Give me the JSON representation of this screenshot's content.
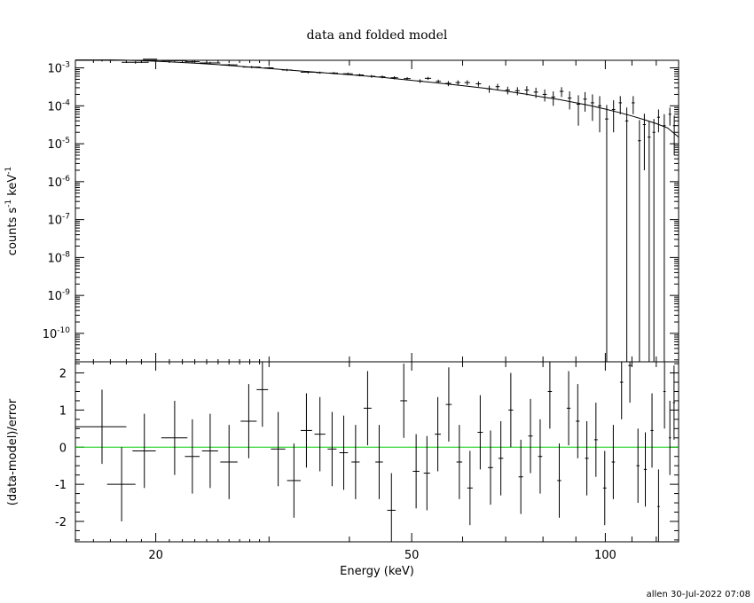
{
  "chart_data": [
    {
      "type": "scatter",
      "title": "data and folded model",
      "ylabel_base": "counts s",
      "ylabel_mid": " keV",
      "ylabel_sup": "-1",
      "xscale": "log",
      "yscale": "log",
      "xlim": [
        15,
        130
      ],
      "ylim_log10": [
        -10.75,
        -2.8
      ],
      "y_ticks": [
        {
          "exp": -3,
          "base": "10",
          "sup": "-3"
        },
        {
          "exp": -4,
          "base": "10",
          "sup": "-4"
        },
        {
          "exp": -5,
          "base": "10",
          "sup": "-5"
        },
        {
          "exp": -6,
          "base": "10",
          "sup": "-6"
        },
        {
          "exp": -7,
          "base": "10",
          "sup": "-7"
        },
        {
          "exp": -8,
          "base": "10",
          "sup": "-8"
        },
        {
          "exp": -9,
          "base": "10",
          "sup": "-9"
        },
        {
          "exp": -10,
          "base": "10",
          "sup": "-10"
        }
      ],
      "series": [
        {
          "kind": "data",
          "points": [
            [
              16.5,
              0.0016,
              1.5,
              0.00013
            ],
            [
              18.6,
              0.0014,
              0.9,
              0.00011
            ],
            [
              19.6,
              0.0017,
              0.5,
              0.00012
            ],
            [
              21.4,
              0.00155,
              1.0,
              0.0001
            ],
            [
              22.8,
              0.00145,
              0.6,
              9e-05
            ],
            [
              24.3,
              0.00135,
              0.9,
              9e-05
            ],
            [
              26.0,
              0.0012,
              0.8,
              8e-05
            ],
            [
              28.2,
              0.00105,
              0.9,
              7e-05
            ],
            [
              30.0,
              0.001,
              0.5,
              6e-05
            ],
            [
              32.0,
              0.00088,
              0.6,
              6e-05
            ],
            [
              34.5,
              0.00077,
              0.9,
              6e-05
            ],
            [
              36.0,
              0.00075,
              0.5,
              5e-05
            ],
            [
              37.8,
              0.00073,
              0.6,
              5e-05
            ],
            [
              39.8,
              0.0007,
              0.7,
              5e-05
            ],
            [
              41.5,
              0.00065,
              0.6,
              5e-05
            ],
            [
              43.3,
              0.0006,
              0.6,
              5e-05
            ],
            [
              45.0,
              0.00058,
              0.5,
              5e-05
            ],
            [
              47.0,
              0.00055,
              0.6,
              5e-05
            ],
            [
              49.2,
              0.00052,
              0.6,
              5e-05
            ],
            [
              51.5,
              0.00045,
              0.5,
              5e-05
            ],
            [
              53.0,
              0.00053,
              0.6,
              5e-05
            ],
            [
              55.0,
              0.00044,
              0.5,
              5e-05
            ],
            [
              57.0,
              0.00039,
              0.6,
              6e-05
            ],
            [
              59.0,
              0.00041,
              0.5,
              6e-05
            ],
            [
              61.0,
              0.00041,
              0.6,
              6e-05
            ],
            [
              63.5,
              0.00038,
              0.6,
              6e-05
            ],
            [
              66.0,
              0.00028,
              0.6,
              6e-05
            ],
            [
              68.0,
              0.00032,
              0.5,
              6e-05
            ],
            [
              70.5,
              0.00026,
              0.6,
              6e-05
            ],
            [
              73.0,
              0.00025,
              0.6,
              6e-05
            ],
            [
              75.5,
              0.00026,
              0.6,
              7e-05
            ],
            [
              78.0,
              0.00023,
              0.6,
              7e-05
            ],
            [
              80.5,
              0.0002,
              0.6,
              7e-05
            ],
            [
              83.0,
              0.00017,
              0.6,
              7e-05
            ],
            [
              85.5,
              0.00024,
              0.6,
              7e-05
            ],
            [
              88.0,
              0.00016,
              0.6,
              8e-05
            ],
            [
              90.8,
              0.00011,
              0.6,
              8e-05
            ],
            [
              93.0,
              0.00015,
              0.6,
              8e-05
            ],
            [
              95.5,
              0.00012,
              0.6,
              8e-05
            ],
            [
              98.0,
              0.0001,
              0.6,
              8e-05
            ],
            [
              100.5,
              4.5e-05,
              0.6,
              6e-05
            ],
            [
              103.0,
              8e-05,
              0.6,
              6e-05
            ],
            [
              105.5,
              0.00012,
              0.6,
              6e-05
            ],
            [
              108.0,
              4e-05,
              0.6,
              5e-05
            ],
            [
              110.5,
              0.00012,
              0.6,
              6e-05
            ],
            [
              113.0,
              1.2e-05,
              0.6,
              3e-05
            ],
            [
              115.0,
              3.2e-05,
              0.6,
              3e-05
            ],
            [
              117.0,
              1.5e-05,
              0.6,
              2.5e-05
            ],
            [
              119.0,
              2e-05,
              0.6,
              2.5e-05
            ],
            [
              121.0,
              5e-05,
              0.6,
              3e-05
            ],
            [
              123.5,
              3e-05,
              0.6,
              3e-05
            ],
            [
              126.0,
              6e-05,
              0.6,
              3e-05
            ],
            [
              128.0,
              3e-05,
              0.6,
              2.5e-05
            ]
          ]
        },
        {
          "kind": "folded_model",
          "points": [
            [
              15.0,
              0.00162
            ],
            [
              17.0,
              0.00162
            ],
            [
              19.0,
              0.00155
            ],
            [
              21.0,
              0.00145
            ],
            [
              23.0,
              0.00133
            ],
            [
              25.0,
              0.00122
            ],
            [
              27.0,
              0.0011
            ],
            [
              30.0,
              0.00096
            ],
            [
              33.0,
              0.00085
            ],
            [
              36.0,
              0.00076
            ],
            [
              40.0,
              0.00066
            ],
            [
              45.0,
              0.00056
            ],
            [
              50.0,
              0.00047
            ],
            [
              55.0,
              0.0004
            ],
            [
              60.0,
              0.00034
            ],
            [
              65.0,
              0.00029
            ],
            [
              70.0,
              0.000245
            ],
            [
              75.0,
              0.000205
            ],
            [
              80.0,
              0.00017
            ],
            [
              85.0,
              0.000145
            ],
            [
              90.0,
              0.00012
            ],
            [
              95.0,
              0.0001
            ],
            [
              100.0,
              8.2e-05
            ],
            [
              105.0,
              6.7e-05
            ],
            [
              110.0,
              5.4e-05
            ],
            [
              115.0,
              4.3e-05
            ],
            [
              120.0,
              3.4e-05
            ],
            [
              125.0,
              2.6e-05
            ],
            [
              130.0,
              1.5e-05
            ]
          ]
        }
      ]
    },
    {
      "type": "scatter",
      "xlabel": "Energy (keV)",
      "ylabel": "(data-model)/error",
      "xscale": "log",
      "xlim": [
        15,
        130
      ],
      "ylim": [
        -2.55,
        2.3
      ],
      "x_ticks": [
        "20",
        "50",
        "100"
      ],
      "y_ticks": [
        "2",
        "1",
        "0",
        "-1",
        "-2"
      ],
      "reference_line": {
        "y": 0,
        "color": "#00cc00"
      },
      "points": [
        [
          16.5,
          0.55,
          1.5,
          1
        ],
        [
          17.7,
          -1.0,
          0.9,
          1
        ],
        [
          19.2,
          -0.1,
          0.8,
          1
        ],
        [
          21.4,
          0.25,
          1.0,
          1
        ],
        [
          22.8,
          -0.25,
          0.6,
          1
        ],
        [
          24.3,
          -0.1,
          0.7,
          1
        ],
        [
          26.0,
          -0.4,
          0.8,
          1
        ],
        [
          27.9,
          0.7,
          0.8,
          1
        ],
        [
          29.3,
          1.55,
          0.6,
          1
        ],
        [
          31.0,
          -0.05,
          0.8,
          1
        ],
        [
          32.8,
          -0.9,
          0.8,
          1
        ],
        [
          34.3,
          0.45,
          0.7,
          1
        ],
        [
          36.0,
          0.35,
          0.7,
          1
        ],
        [
          37.6,
          -0.05,
          0.6,
          1
        ],
        [
          39.2,
          -0.15,
          0.6,
          1
        ],
        [
          40.9,
          -0.4,
          0.6,
          1
        ],
        [
          42.7,
          1.05,
          0.6,
          1
        ],
        [
          44.5,
          -0.4,
          0.6,
          1
        ],
        [
          46.5,
          -1.7,
          0.7,
          1
        ],
        [
          48.6,
          1.25,
          0.6,
          1
        ],
        [
          50.8,
          -0.65,
          0.6,
          1
        ],
        [
          52.8,
          -0.7,
          0.6,
          1
        ],
        [
          54.9,
          0.35,
          0.6,
          1
        ],
        [
          57.1,
          1.15,
          0.6,
          1
        ],
        [
          59.3,
          -0.4,
          0.6,
          1
        ],
        [
          61.6,
          -1.1,
          0.6,
          1
        ],
        [
          63.9,
          0.4,
          0.6,
          1
        ],
        [
          66.3,
          -0.55,
          0.6,
          1
        ],
        [
          68.8,
          -0.3,
          0.6,
          1
        ],
        [
          71.3,
          1.0,
          0.6,
          1
        ],
        [
          73.9,
          -0.8,
          0.6,
          1
        ],
        [
          76.5,
          0.3,
          0.6,
          1
        ],
        [
          79.2,
          -0.25,
          0.6,
          1
        ],
        [
          82.0,
          1.5,
          0.6,
          1
        ],
        [
          84.8,
          -0.9,
          0.6,
          1
        ],
        [
          87.7,
          1.05,
          0.6,
          1
        ],
        [
          90.6,
          0.7,
          0.6,
          1
        ],
        [
          93.6,
          -0.3,
          0.6,
          1
        ],
        [
          96.7,
          0.2,
          0.6,
          1
        ],
        [
          99.8,
          -1.1,
          0.6,
          1
        ],
        [
          102.9,
          -0.4,
          0.6,
          1
        ],
        [
          106.0,
          1.75,
          0.6,
          1
        ],
        [
          109.2,
          2.2,
          0.6,
          1
        ],
        [
          112.4,
          -0.5,
          0.6,
          1
        ],
        [
          115.4,
          -0.6,
          0.6,
          1
        ],
        [
          118.2,
          0.45,
          0.6,
          1
        ],
        [
          121.0,
          -1.6,
          0.5,
          1
        ],
        [
          123.6,
          1.5,
          0.5,
          1
        ],
        [
          126.0,
          0.25,
          0.5,
          1
        ],
        [
          127.9,
          1.2,
          0.5,
          1
        ]
      ]
    }
  ],
  "footer": {
    "stamp": "allen 30-Jul-2022 07:08"
  }
}
